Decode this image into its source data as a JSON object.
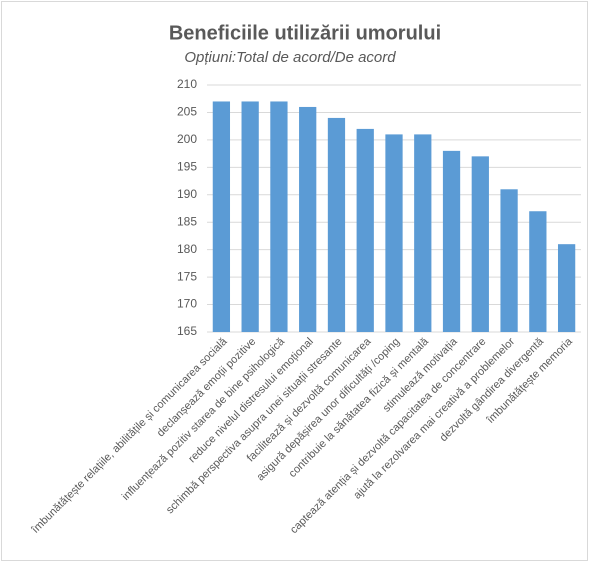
{
  "chart_data": {
    "type": "bar",
    "title": "Beneficiile utilizării umorului",
    "subtitle": "Opțiuni:Total de acord/De acord",
    "categories": [
      "îmbunătățește relațiile, abilitățile și comunicarea socială",
      "declanșează emoții pozitive",
      "influențează pozitiv starea de bine psihologică",
      "reduce nivelul distresului emoțional",
      "schimbă perspectiva asupra unei situații stresante",
      "facilitează  și dezvoltă comunicarea",
      "asigură depășirea unor dificultăți /coping",
      "contribuie la sănătatea fizică și mentală",
      "stimulează motivația",
      "captează atenția și dezvoltă capacitatea de concentrare",
      "ajută la rezolvarea mai creativă a problemelor",
      "dezvoltă gândirea divergentă",
      "îmbunătățește memoria"
    ],
    "values": [
      207,
      207,
      207,
      206,
      204,
      202,
      201,
      201,
      198,
      197,
      191,
      187,
      181
    ],
    "color": "#5b9bd5",
    "ylim": [
      165,
      210
    ],
    "yticks": [
      165,
      170,
      175,
      180,
      185,
      190,
      195,
      200,
      205,
      210
    ],
    "grid": true
  }
}
